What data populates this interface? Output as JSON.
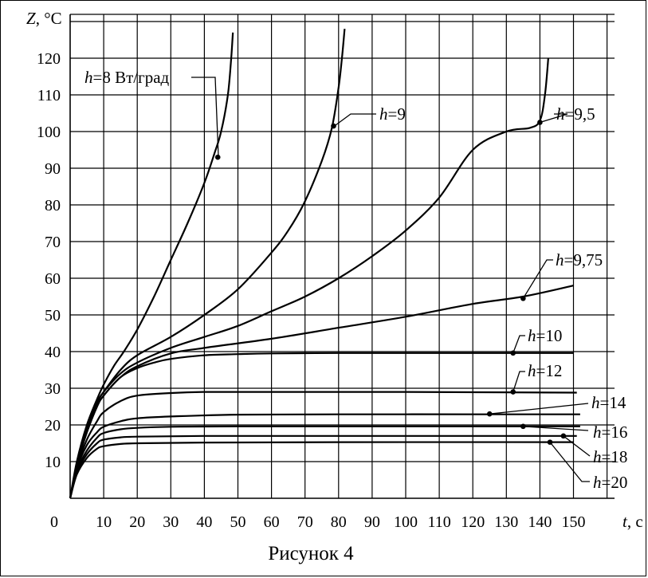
{
  "chart_data": {
    "type": "line",
    "title": "",
    "xlabel": "t, с",
    "ylabel": "Z, °С",
    "xlim": [
      0,
      150
    ],
    "ylim": [
      0,
      120
    ],
    "x_ticks": [
      "0",
      "10",
      "20",
      "30",
      "40",
      "50",
      "60",
      "70",
      "80",
      "90",
      "100",
      "110",
      "120",
      "130",
      "140",
      "150"
    ],
    "y_ticks": [
      "10",
      "20",
      "30",
      "40",
      "50",
      "60",
      "70",
      "80",
      "90",
      "100",
      "110",
      "120"
    ],
    "grid": true,
    "series": [
      {
        "name": "h=8 Вт/град",
        "prefix": "h",
        "value_label": "=8 Вт/град",
        "x": [
          0,
          2,
          5,
          8,
          10,
          13,
          16,
          20,
          25,
          30,
          35,
          40,
          43,
          45,
          47,
          48,
          48.5
        ],
        "y": [
          0,
          10,
          20,
          27,
          31,
          36,
          40,
          46,
          55,
          65,
          75,
          86,
          94,
          100,
          110,
          120,
          127
        ]
      },
      {
        "name": "h=9",
        "prefix": "h",
        "value_label": "=9",
        "x": [
          0,
          2,
          5,
          8,
          10,
          15,
          20,
          30,
          40,
          50,
          60,
          65,
          70,
          75,
          78,
          80,
          81,
          81.8
        ],
        "y": [
          0,
          9,
          19,
          26,
          29,
          35,
          39,
          44,
          50,
          57,
          67,
          73,
          81,
          92,
          101,
          112,
          120,
          128
        ]
      },
      {
        "name": "h=9,5",
        "prefix": "h",
        "value_label": "=9,5",
        "x": [
          0,
          2,
          5,
          8,
          10,
          15,
          20,
          30,
          40,
          50,
          60,
          70,
          80,
          90,
          100,
          110,
          120,
          130,
          137,
          140,
          141.5,
          142.5
        ],
        "y": [
          0,
          9,
          19,
          26,
          29,
          34,
          37,
          41,
          44,
          47,
          51,
          55,
          60,
          66,
          73,
          82,
          95,
          100,
          101,
          103,
          110,
          120
        ]
      },
      {
        "name": "h=9,75",
        "prefix": "h",
        "value_label": "=9,75",
        "x": [
          0,
          2,
          5,
          8,
          10,
          15,
          20,
          30,
          40,
          60,
          80,
          100,
          120,
          135,
          150
        ],
        "y": [
          0,
          9,
          18,
          25,
          28,
          33,
          36,
          39.5,
          41,
          43.5,
          46.5,
          49.5,
          53,
          55,
          58
        ]
      },
      {
        "name": "h=10",
        "prefix": "h",
        "value_label": "=10",
        "x": [
          0,
          2,
          5,
          8,
          10,
          15,
          20,
          25,
          30,
          40,
          50,
          60,
          80,
          100,
          150
        ],
        "y": [
          0,
          9,
          18,
          25,
          28,
          33,
          35.5,
          37,
          38,
          39,
          39.3,
          39.5,
          39.6,
          39.6,
          39.6
        ]
      },
      {
        "name": "h=12",
        "prefix": "h",
        "value_label": "=12",
        "x": [
          0,
          2,
          5,
          8,
          10,
          15,
          20,
          30,
          40,
          60,
          100,
          151
        ],
        "y": [
          0,
          8.5,
          16,
          21,
          23.5,
          26.5,
          28,
          28.7,
          29,
          29,
          29,
          28.8
        ]
      },
      {
        "name": "h=14",
        "prefix": "h",
        "value_label": "=14",
        "x": [
          0,
          2,
          5,
          8,
          10,
          15,
          20,
          30,
          50,
          80,
          125,
          152
        ],
        "y": [
          0,
          8,
          14.5,
          18,
          19.5,
          21,
          21.8,
          22.3,
          22.8,
          22.9,
          22.9,
          22.9
        ]
      },
      {
        "name": "h=16",
        "prefix": "h",
        "value_label": "=16",
        "x": [
          0,
          2,
          5,
          8,
          10,
          15,
          20,
          30,
          50,
          100,
          152
        ],
        "y": [
          0,
          7.5,
          13,
          16.5,
          17.8,
          18.8,
          19.2,
          19.5,
          19.6,
          19.6,
          19.6
        ]
      },
      {
        "name": "h=18",
        "prefix": "h",
        "value_label": "=18",
        "x": [
          0,
          2,
          5,
          8,
          10,
          15,
          20,
          40,
          80,
          151
        ],
        "y": [
          0,
          7,
          12,
          15,
          16,
          16.6,
          16.8,
          17,
          17,
          17
        ]
      },
      {
        "name": "h=20",
        "prefix": "h",
        "value_label": "=20",
        "x": [
          0,
          2,
          5,
          8,
          10,
          15,
          20,
          40,
          80,
          150
        ],
        "y": [
          0,
          6.5,
          11,
          13.5,
          14.2,
          14.8,
          15,
          15.2,
          15.3,
          15.3
        ]
      }
    ],
    "markers": [
      {
        "series": "h=8 Вт/град",
        "x": 44,
        "y": 93
      },
      {
        "series": "h=9",
        "x": 78.5,
        "y": 101.5
      },
      {
        "series": "h=9,5",
        "x": 140,
        "y": 102.5
      },
      {
        "series": "h=9,75",
        "x": 135,
        "y": 54.5
      },
      {
        "series": "h=10",
        "x": 132,
        "y": 39.6
      },
      {
        "series": "h=12",
        "x": 132,
        "y": 29
      },
      {
        "series": "h=14",
        "x": 125,
        "y": 23
      },
      {
        "series": "h=16",
        "x": 135,
        "y": 19.6
      },
      {
        "series": "h=18",
        "x": 147,
        "y": 17
      },
      {
        "series": "h=20",
        "x": 143,
        "y": 15.3
      }
    ]
  },
  "caption": "Рисунок 4"
}
